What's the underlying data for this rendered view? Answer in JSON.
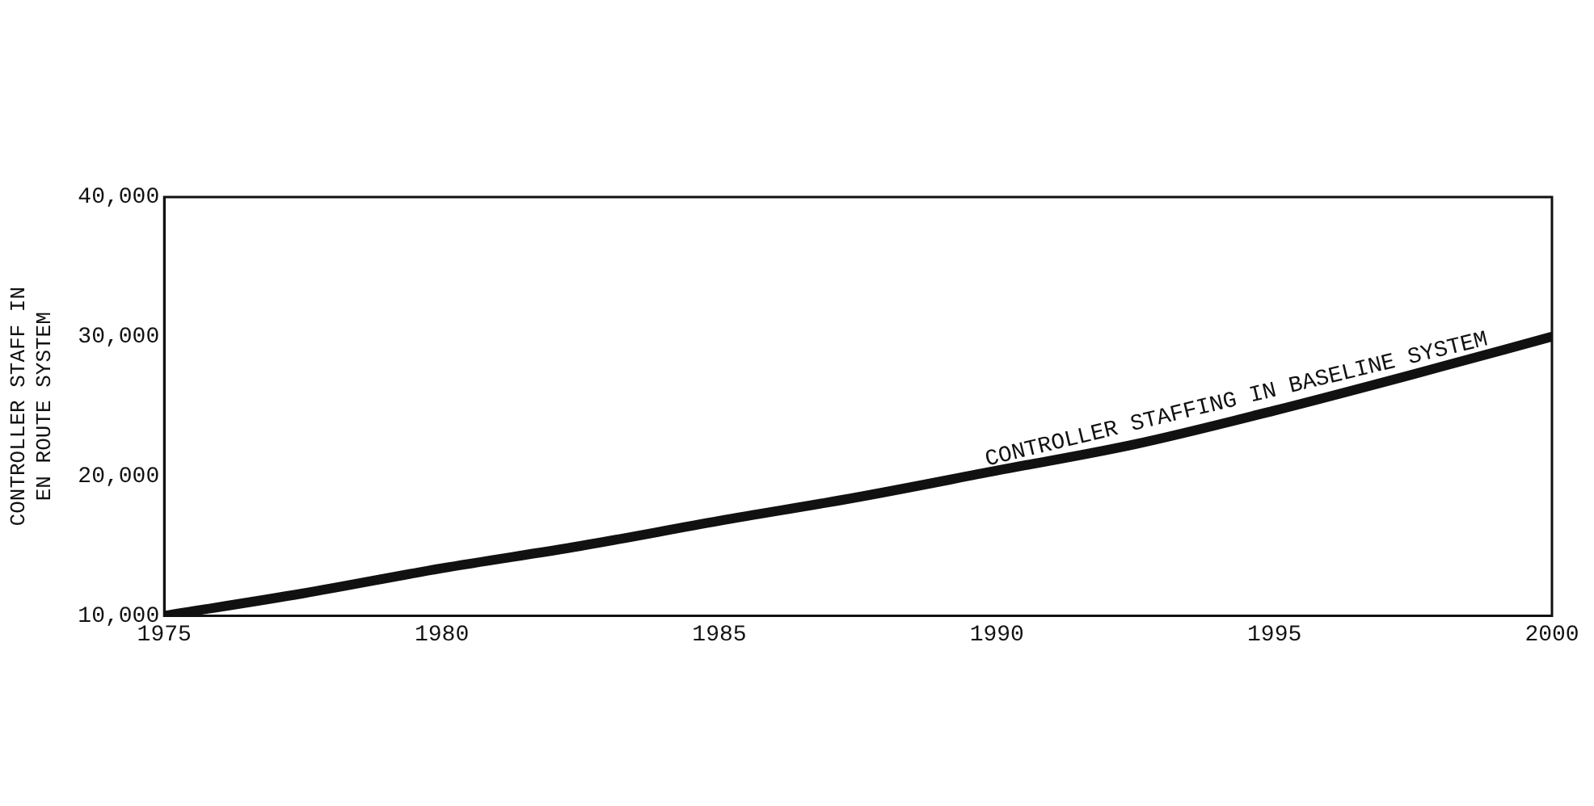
{
  "chart_data": {
    "type": "line",
    "ylabel": "CONTROLLER STAFF IN EN ROUTE SYSTEM",
    "x": [
      1975,
      1977.5,
      1980,
      1982.5,
      1985,
      1987.5,
      1990,
      1992.5,
      1995,
      1997.5,
      2000
    ],
    "series": [
      {
        "color": "#111111",
        "values": [
          10000,
          11600,
          13400,
          15000,
          16800,
          18500,
          20400,
          22300,
          24700,
          27300,
          30000
        ]
      }
    ],
    "xlim": [
      1975,
      2000
    ],
    "xticks": [
      1975,
      1980,
      1985,
      1990,
      1995,
      2000
    ],
    "ylim": [
      10000,
      40000
    ],
    "yticks": [
      {
        "value": 10000,
        "label": "10,000"
      },
      {
        "value": 20000,
        "label": "20,000"
      },
      {
        "value": 30000,
        "label": "30,000"
      },
      {
        "value": 40000,
        "label": "40,000"
      }
    ],
    "annotations": [
      "CONTROLLER STAFFING IN BASELINE SYSTEM"
    ],
    "grid": false,
    "legend": false,
    "marker": "none",
    "line_style": "solid"
  }
}
